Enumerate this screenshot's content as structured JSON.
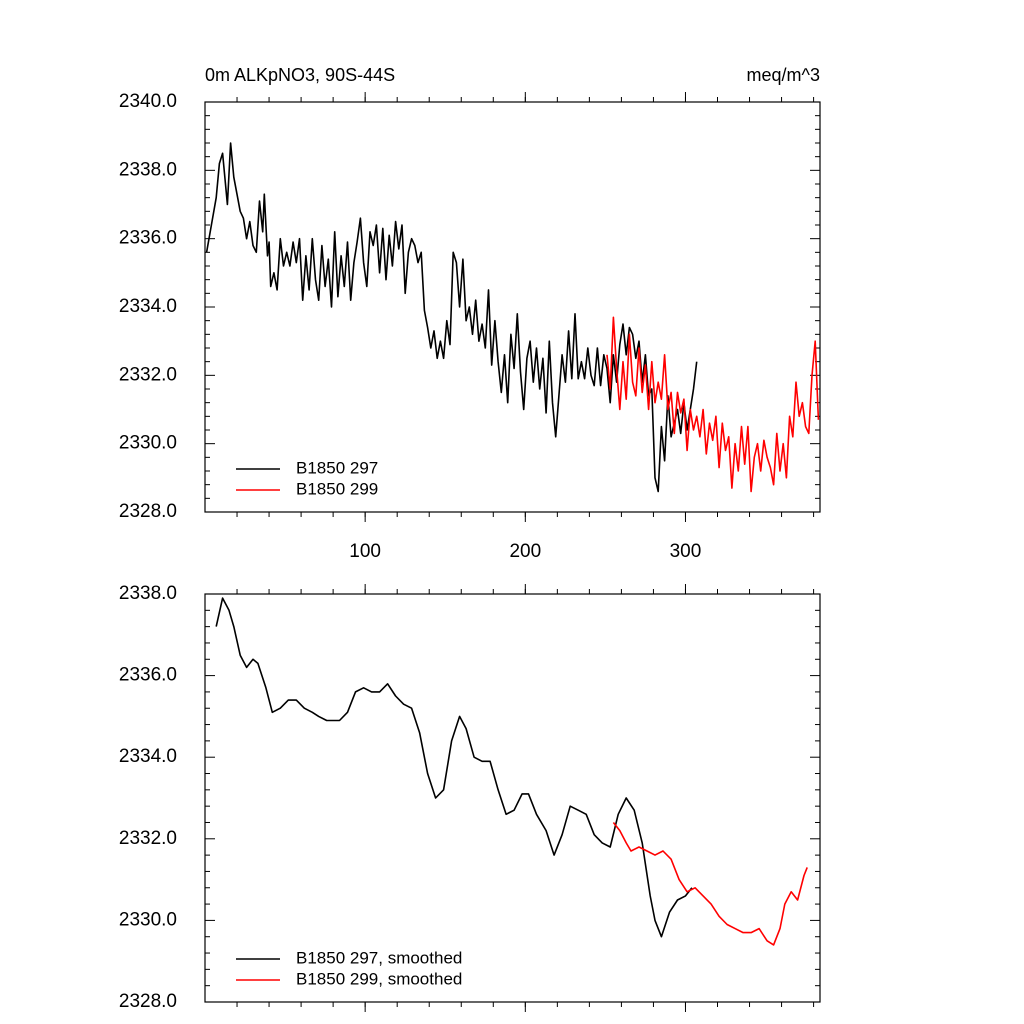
{
  "chart_data": [
    {
      "type": "line",
      "title": "0m ALKpNO3, 90S-44S",
      "units": "meq/m^3",
      "xlim": [
        0,
        384
      ],
      "xticks": [
        100,
        200,
        300
      ],
      "xtick_labels": true,
      "ylim": [
        2328,
        2340
      ],
      "yticks": [
        {
          "value": 2328,
          "label": "2328.0"
        },
        {
          "value": 2330,
          "label": "2330.0"
        },
        {
          "value": 2332,
          "label": "2332.0"
        },
        {
          "value": 2334,
          "label": "2334.0"
        },
        {
          "value": 2336,
          "label": "2336.0"
        },
        {
          "value": 2338,
          "label": "2338.0"
        },
        {
          "value": 2340,
          "label": "2340.0"
        }
      ],
      "legend": "lower left",
      "series": [
        {
          "name": "B1850 297",
          "color": "#000000",
          "x": [
            1,
            4,
            7,
            9,
            11,
            13,
            14,
            16,
            18,
            20,
            22,
            24,
            26,
            28,
            30,
            32,
            34,
            36,
            37,
            39,
            40,
            41,
            43,
            45,
            47,
            49,
            51,
            53,
            55,
            57,
            59,
            61,
            63,
            65,
            67,
            69,
            71,
            73,
            75,
            77,
            79,
            81,
            83,
            85,
            87,
            89,
            91,
            93,
            95,
            97,
            99,
            101,
            103,
            105,
            107,
            109,
            111,
            113,
            115,
            117,
            119,
            121,
            123,
            125,
            127,
            129,
            131,
            133,
            135,
            137,
            139,
            141,
            143,
            145,
            147,
            149,
            151,
            153,
            155,
            157,
            159,
            161,
            163,
            165,
            167,
            169,
            171,
            173,
            175,
            177,
            179,
            181,
            183,
            185,
            187,
            189,
            191,
            193,
            195,
            197,
            199,
            201,
            203,
            205,
            207,
            209,
            211,
            213,
            215,
            217,
            219,
            221,
            223,
            225,
            227,
            229,
            231,
            233,
            235,
            237,
            239,
            241,
            243,
            245,
            247,
            249,
            251,
            253,
            255,
            257,
            259,
            261,
            263,
            265,
            267,
            269,
            271,
            273,
            275,
            277,
            279,
            281,
            283,
            285,
            287,
            289,
            291,
            293,
            295,
            297,
            299,
            301,
            303,
            305,
            307
          ],
          "values": [
            2335.6,
            2336.4,
            2337.2,
            2338.2,
            2338.5,
            2337.5,
            2337.0,
            2338.8,
            2337.8,
            2337.3,
            2336.8,
            2336.6,
            2336.0,
            2336.5,
            2335.8,
            2335.6,
            2337.1,
            2336.2,
            2337.3,
            2335.5,
            2335.9,
            2334.6,
            2335.0,
            2334.5,
            2336.0,
            2335.2,
            2335.6,
            2335.2,
            2335.9,
            2335.3,
            2336.0,
            2334.2,
            2335.5,
            2334.5,
            2336.0,
            2334.8,
            2334.2,
            2335.8,
            2334.6,
            2335.4,
            2334.0,
            2336.2,
            2334.3,
            2335.5,
            2334.6,
            2335.9,
            2334.2,
            2335.3,
            2335.9,
            2336.6,
            2335.3,
            2334.6,
            2336.2,
            2335.8,
            2336.4,
            2335.0,
            2336.3,
            2334.8,
            2336.1,
            2335.2,
            2336.5,
            2335.7,
            2336.4,
            2334.4,
            2335.6,
            2336.0,
            2335.8,
            2335.3,
            2335.6,
            2333.9,
            2333.4,
            2332.8,
            2333.3,
            2332.5,
            2333.0,
            2332.5,
            2333.6,
            2332.9,
            2335.6,
            2335.3,
            2334.0,
            2335.4,
            2333.6,
            2334.0,
            2333.2,
            2334.2,
            2333.0,
            2333.5,
            2332.8,
            2334.5,
            2332.3,
            2333.6,
            2332.4,
            2331.5,
            2332.6,
            2331.2,
            2333.2,
            2332.2,
            2333.8,
            2332.1,
            2331.0,
            2332.5,
            2333.0,
            2331.8,
            2332.8,
            2331.6,
            2332.5,
            2330.9,
            2333.0,
            2331.2,
            2330.2,
            2331.4,
            2332.6,
            2331.8,
            2333.3,
            2331.9,
            2333.8,
            2331.9,
            2332.4,
            2331.9,
            2332.8,
            2332.0,
            2331.7,
            2332.8,
            2331.7,
            2332.6,
            2332.2,
            2331.2,
            2332.6,
            2331.8,
            2332.9,
            2333.5,
            2332.6,
            2333.4,
            2333.2,
            2332.5,
            2333.0,
            2331.8,
            2332.6,
            2331.4,
            2331.6,
            2329.0,
            2328.6,
            2330.5,
            2329.5,
            2331.4,
            2330.2,
            2330.6,
            2331.0,
            2330.3,
            2331.2,
            2330.4,
            2331.0,
            2331.6,
            2332.4
          ]
        },
        {
          "name": "B1850 299",
          "color": "#ff0000",
          "x": [
            251,
            253,
            255,
            257,
            259,
            261,
            263,
            265,
            267,
            269,
            271,
            273,
            275,
            277,
            279,
            281,
            283,
            285,
            287,
            289,
            291,
            293,
            295,
            297,
            299,
            301,
            303,
            305,
            307,
            309,
            311,
            313,
            315,
            317,
            319,
            321,
            323,
            325,
            327,
            329,
            331,
            333,
            335,
            337,
            339,
            341,
            343,
            345,
            347,
            349,
            351,
            353,
            355,
            357,
            359,
            361,
            363,
            365,
            367,
            369,
            371,
            373,
            375,
            377,
            379,
            381,
            383
          ],
          "values": [
            2332.6,
            2331.6,
            2333.7,
            2332.2,
            2331.0,
            2332.4,
            2331.3,
            2333.2,
            2331.8,
            2331.4,
            2332.8,
            2331.5,
            2332.3,
            2331.0,
            2332.4,
            2331.2,
            2331.8,
            2331.3,
            2332.6,
            2331.0,
            2331.5,
            2330.3,
            2331.5,
            2330.9,
            2331.3,
            2329.8,
            2331.0,
            2330.4,
            2330.8,
            2330.2,
            2331.0,
            2329.7,
            2330.6,
            2330.1,
            2330.8,
            2329.3,
            2330.6,
            2329.8,
            2330.2,
            2328.7,
            2330.0,
            2329.2,
            2330.5,
            2329.4,
            2330.5,
            2328.6,
            2329.6,
            2330.0,
            2329.2,
            2330.1,
            2329.6,
            2329.3,
            2328.8,
            2330.3,
            2329.2,
            2330.0,
            2329.0,
            2330.8,
            2330.2,
            2331.8,
            2330.8,
            2331.2,
            2330.5,
            2330.3,
            2332.0,
            2333.0,
            2330.7
          ]
        }
      ]
    },
    {
      "type": "line",
      "xlim": [
        0,
        384
      ],
      "xticks": [
        100,
        200,
        300
      ],
      "xtick_labels": false,
      "ylim": [
        2328,
        2338
      ],
      "yticks": [
        {
          "value": 2328,
          "label": "2328.0"
        },
        {
          "value": 2330,
          "label": "2330.0"
        },
        {
          "value": 2332,
          "label": "2332.0"
        },
        {
          "value": 2334,
          "label": "2334.0"
        },
        {
          "value": 2336,
          "label": "2336.0"
        },
        {
          "value": 2338,
          "label": "2338.0"
        }
      ],
      "legend": "lower left",
      "series": [
        {
          "name": "B1850 297, smoothed",
          "color": "#000000",
          "x": [
            7,
            11,
            15,
            18,
            22,
            26,
            30,
            33,
            38,
            42,
            47,
            52,
            57,
            62,
            67,
            71,
            76,
            81,
            84,
            89,
            94,
            99,
            104,
            109,
            114,
            119,
            124,
            129,
            134,
            139,
            144,
            149,
            154,
            159,
            163,
            168,
            173,
            178,
            183,
            188,
            193,
            198,
            202,
            207,
            213,
            218,
            223,
            228,
            233,
            238,
            243,
            248,
            253,
            258,
            263,
            268,
            273,
            278,
            281,
            285,
            290,
            295,
            300,
            304
          ],
          "values": [
            2337.2,
            2337.9,
            2337.6,
            2337.2,
            2336.5,
            2336.2,
            2336.4,
            2336.3,
            2335.7,
            2335.1,
            2335.2,
            2335.4,
            2335.4,
            2335.2,
            2335.1,
            2335.0,
            2334.9,
            2334.9,
            2334.9,
            2335.1,
            2335.6,
            2335.7,
            2335.6,
            2335.6,
            2335.8,
            2335.5,
            2335.3,
            2335.2,
            2334.6,
            2333.6,
            2333.0,
            2333.2,
            2334.4,
            2335.0,
            2334.7,
            2334.0,
            2333.9,
            2333.9,
            2333.2,
            2332.6,
            2332.7,
            2333.1,
            2333.1,
            2332.6,
            2332.2,
            2331.6,
            2332.1,
            2332.8,
            2332.7,
            2332.6,
            2332.1,
            2331.9,
            2331.8,
            2332.6,
            2333.0,
            2332.7,
            2331.9,
            2330.6,
            2330.0,
            2329.6,
            2330.2,
            2330.5,
            2330.6,
            2330.8
          ]
        },
        {
          "name": "B1850 299, smoothed",
          "color": "#ff0000",
          "x": [
            255,
            259,
            263,
            266,
            271,
            276,
            281,
            286,
            291,
            296,
            301,
            306,
            311,
            316,
            321,
            326,
            331,
            336,
            341,
            346,
            351,
            355,
            359,
            362,
            366,
            370,
            374,
            376
          ],
          "values": [
            2332.4,
            2332.2,
            2331.9,
            2331.7,
            2331.8,
            2331.7,
            2331.6,
            2331.7,
            2331.5,
            2331.0,
            2330.7,
            2330.8,
            2330.6,
            2330.4,
            2330.1,
            2329.9,
            2329.8,
            2329.7,
            2329.7,
            2329.8,
            2329.5,
            2329.4,
            2329.8,
            2330.4,
            2330.7,
            2330.5,
            2331.1,
            2331.3
          ]
        }
      ]
    }
  ]
}
